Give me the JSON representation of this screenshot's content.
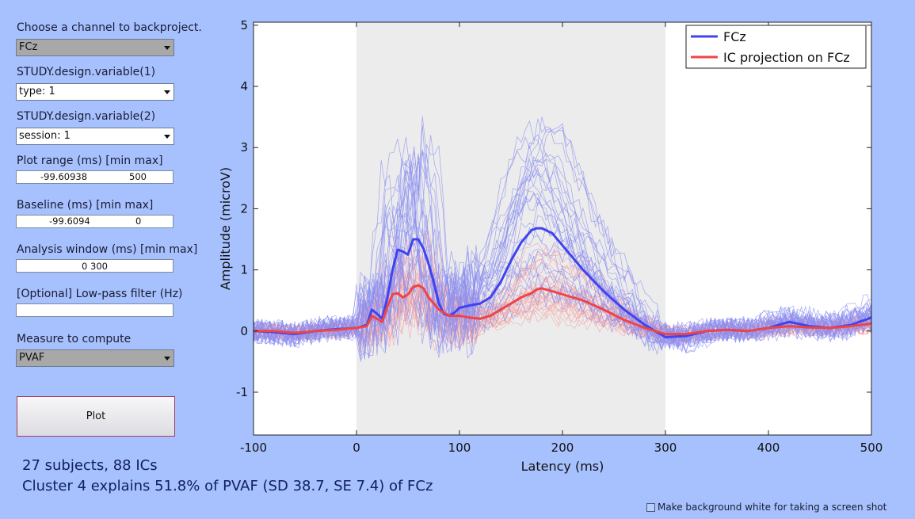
{
  "panel": {
    "channel_label": "Choose a channel to backproject.",
    "channel_value": "FCz",
    "var1_label": "STUDY.design.variable(1)",
    "var1_value": "type: 1",
    "var2_label": "STUDY.design.variable(2)",
    "var2_value": "session: 1",
    "plot_range_label": "Plot range (ms) [min max]",
    "plot_range_min": "-99.60938",
    "plot_range_max": "500",
    "baseline_label": "Baseline (ms) [min max]",
    "baseline_min": "-99.6094",
    "baseline_max": "0",
    "analysis_label": "Analysis window (ms) [min max]",
    "analysis_value": "0 300",
    "lowpass_label": "[Optional] Low-pass filter (Hz)",
    "lowpass_value": "",
    "measure_label": "Measure to compute",
    "measure_value": "PVAF",
    "plot_button": "Plot"
  },
  "summary": {
    "line1": "27 subjects, 88 ICs",
    "line2": "Cluster 4 explains 51.8% of PVAF (SD 38.7, SE 7.4) of FCz"
  },
  "checkbox_label": "Make background white for taking a screen shot",
  "colors": {
    "background": "#a6c1fd",
    "axes_bg": "#ffffff",
    "window_shade": "#ececec",
    "fcz": "#3f43f0",
    "ic": "#f04444",
    "fcz_thin": "#8a8ef2",
    "ic_thin": "#f5a2a2"
  },
  "chart_data": {
    "type": "line",
    "xlabel": "Latency (ms)",
    "ylabel": "Amplitude (microV)",
    "xlim": [
      -100,
      500
    ],
    "ylim": [
      -1.7,
      5.05
    ],
    "xticks": [
      -100,
      0,
      100,
      200,
      300,
      400,
      500
    ],
    "yticks": [
      -1,
      0,
      1,
      2,
      3,
      4,
      5
    ],
    "shaded_window": [
      0,
      300
    ],
    "legend_position": "top-right",
    "series": [
      {
        "name": "FCz",
        "x": [
          -100,
          -80,
          -60,
          -40,
          -20,
          0,
          10,
          15,
          20,
          25,
          30,
          35,
          40,
          45,
          50,
          55,
          60,
          65,
          70,
          75,
          80,
          85,
          90,
          95,
          100,
          110,
          120,
          130,
          140,
          150,
          160,
          170,
          175,
          180,
          190,
          200,
          220,
          240,
          260,
          280,
          300,
          320,
          340,
          360,
          380,
          400,
          420,
          440,
          460,
          480,
          500
        ],
        "values": [
          0.0,
          -0.02,
          -0.05,
          0.0,
          0.03,
          0.05,
          0.1,
          0.35,
          0.28,
          0.2,
          0.55,
          1.0,
          1.33,
          1.3,
          1.25,
          1.5,
          1.5,
          1.35,
          1.1,
          0.8,
          0.45,
          0.28,
          0.25,
          0.3,
          0.38,
          0.42,
          0.45,
          0.55,
          0.8,
          1.15,
          1.45,
          1.65,
          1.68,
          1.68,
          1.6,
          1.4,
          1.0,
          0.65,
          0.35,
          0.1,
          -0.1,
          -0.08,
          0.0,
          0.02,
          0.0,
          0.05,
          0.15,
          0.08,
          0.05,
          0.1,
          0.22
        ]
      },
      {
        "name": "IC projection on FCz",
        "x": [
          -100,
          -80,
          -60,
          -40,
          -20,
          0,
          10,
          15,
          20,
          25,
          30,
          35,
          40,
          45,
          50,
          55,
          60,
          65,
          70,
          75,
          80,
          85,
          90,
          95,
          100,
          110,
          120,
          130,
          140,
          150,
          160,
          170,
          175,
          180,
          190,
          200,
          220,
          240,
          260,
          280,
          300,
          320,
          340,
          360,
          380,
          400,
          420,
          440,
          460,
          480,
          500
        ],
        "values": [
          0.0,
          0.0,
          -0.03,
          0.0,
          0.02,
          0.05,
          0.08,
          0.25,
          0.2,
          0.15,
          0.4,
          0.6,
          0.62,
          0.55,
          0.6,
          0.72,
          0.75,
          0.7,
          0.55,
          0.45,
          0.35,
          0.3,
          0.25,
          0.25,
          0.25,
          0.22,
          0.2,
          0.25,
          0.35,
          0.45,
          0.55,
          0.62,
          0.68,
          0.7,
          0.65,
          0.6,
          0.5,
          0.35,
          0.18,
          0.05,
          -0.05,
          -0.05,
          0.0,
          0.02,
          0.0,
          0.05,
          0.08,
          0.06,
          0.05,
          0.08,
          0.12
        ]
      }
    ]
  }
}
